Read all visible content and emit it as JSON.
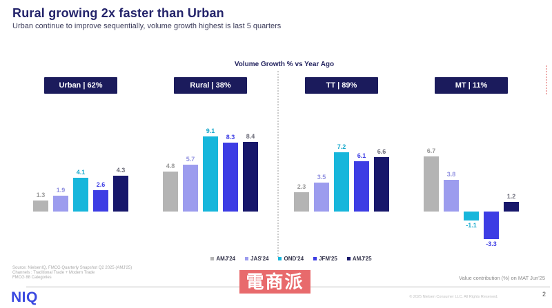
{
  "header": {
    "title": "Rural growing 2x faster than Urban",
    "subtitle": "Urban continue to improve sequentially, volume growth highest is last 5 quarters"
  },
  "chart_data": {
    "type": "bar",
    "title": "Volume Growth % vs Year Ago",
    "categories": [
      "AMJ'24",
      "JAS'24",
      "OND'24",
      "JFM'25",
      "AMJ'25"
    ],
    "series_colors": [
      "#b4b4b4",
      "#9c9cee",
      "#17b6db",
      "#3d3de4",
      "#17176b"
    ],
    "label_colors": [
      "#9a9a9a",
      "#9191e0",
      "#17a9cc",
      "#3d3de4",
      "#6b6b78"
    ],
    "groups": [
      {
        "id": "urban",
        "label": "Urban | 62%",
        "values": [
          1.3,
          1.9,
          4.1,
          2.6,
          4.3
        ]
      },
      {
        "id": "rural",
        "label": "Rural | 38%",
        "values": [
          4.8,
          5.7,
          9.1,
          8.3,
          8.4
        ]
      },
      {
        "id": "tt",
        "label": "TT | 89%",
        "values": [
          2.3,
          3.5,
          7.2,
          6.1,
          6.6
        ]
      },
      {
        "id": "mt",
        "label": "MT | 11%",
        "values": [
          6.7,
          3.8,
          -1.1,
          -3.3,
          1.2
        ]
      }
    ],
    "xlabel": "",
    "ylabel": "Volume Growth % vs Year Ago",
    "ylim": [
      -4,
      10
    ],
    "grid": false,
    "legend_position": "bottom"
  },
  "footer": {
    "source_lines": [
      "Source: NielsenIQ, FMCG Quarterly Snapshot Q2 2025 (AMJ'25)",
      "Channels : Traditional Trade + Modern Trade",
      "FMCG 88 Categories"
    ],
    "value_note": "Value contribution (%) on MAT Jun'25",
    "logo": "NIQ",
    "copyright": "© 2025 Nielsen Consumer LLC. All Rights Reserved.",
    "page_number": "2"
  },
  "watermark": {
    "text": "電商派"
  }
}
